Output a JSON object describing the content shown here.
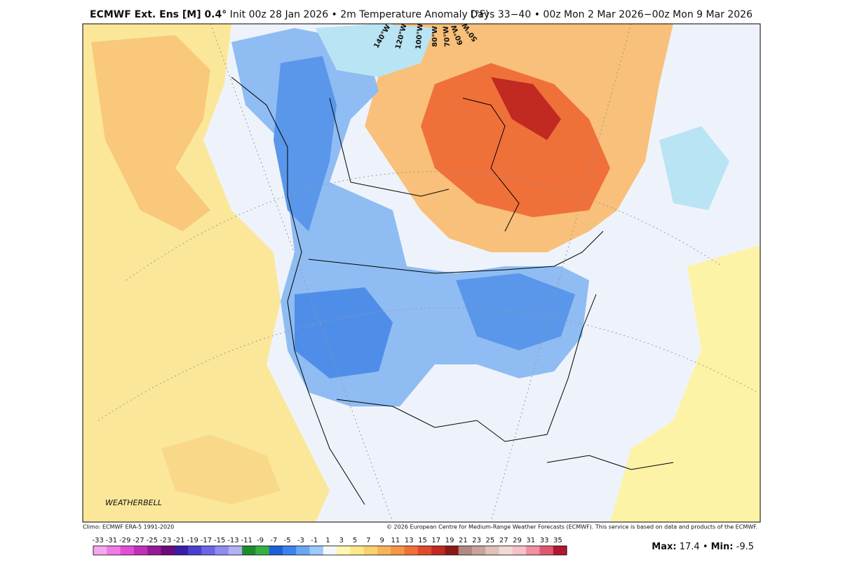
{
  "header": {
    "title_bold": "ECMWF Ext. Ens [M] 0.4°",
    "title_rest": "Init 00z 28 Jan 2026 • 2m Temperature Anomaly (°F)",
    "valid": "Days 33−40 • 00z Mon 2 Mar 2026−00z Mon 9 Mar 2026"
  },
  "map": {
    "longitude_labels": [
      "140°W",
      "120°W",
      "100°W",
      "80°W",
      "70°W",
      "60°W",
      "50°W"
    ],
    "logo": "WEATHERBELL"
  },
  "footer": {
    "climo": "Climo: ECMWF ERA-5 1991-2020",
    "copyright": "© 2026 European Centre for Medium-Range Weather Forecasts (ECMWF). This service is based on data and products of the ECMWF."
  },
  "colorbar": {
    "labels": [
      -33,
      -31,
      -29,
      -27,
      -25,
      -23,
      -21,
      -19,
      -17,
      -15,
      -13,
      -11,
      -9,
      -7,
      -5,
      -3,
      -1,
      1,
      3,
      5,
      7,
      9,
      11,
      13,
      15,
      17,
      19,
      21,
      23,
      25,
      27,
      29,
      31,
      33,
      35
    ],
    "colors": [
      "#f7a6f0",
      "#f07ae6",
      "#e04fd6",
      "#c02fb8",
      "#961a96",
      "#6e0a78",
      "#3a1ca8",
      "#4a40d0",
      "#6a66e6",
      "#8e8cf0",
      "#b2b0f6",
      "#1f8a2e",
      "#36b040",
      "#1e5fd8",
      "#3c82ec",
      "#6aa6f4",
      "#9cc8fa",
      "#f4f7fc",
      "#fff8b0",
      "#fde88a",
      "#fbd070",
      "#f9b45a",
      "#f79448",
      "#f0703a",
      "#e04a2c",
      "#c02a20",
      "#8a1a16",
      "#b08a80",
      "#c8a49a",
      "#e0c2ba",
      "#f0dcd4",
      "#f8c0c8",
      "#f090a0",
      "#e05870",
      "#b01830"
    ]
  },
  "stats": {
    "max_label": "Max:",
    "max": 17.4,
    "separator": "•",
    "min_label": "Min:",
    "min": -9.5
  }
}
